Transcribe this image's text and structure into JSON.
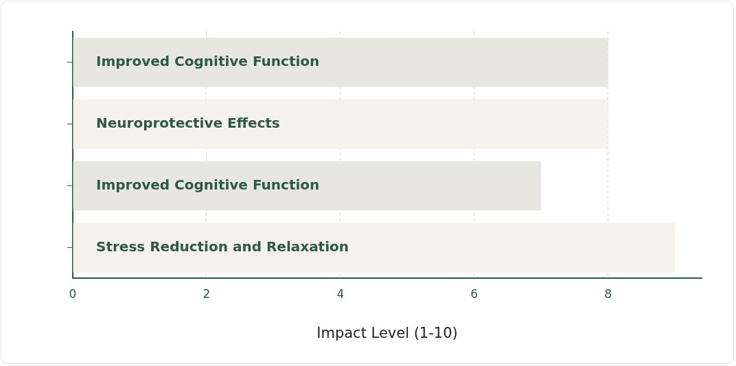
{
  "chart_data": {
    "type": "bar",
    "orientation": "horizontal",
    "xlabel": "Impact Level (1-10)",
    "categories": [
      "Improved Cognitive Function",
      "Neuroprotective Effects",
      "Improved Cognitive Function",
      "Stress Reduction and Relaxation"
    ],
    "values": [
      8,
      8,
      7,
      9
    ],
    "colors": [
      "#e8e7df",
      "#f6f1eb",
      "#e8e7df",
      "#f6f1eb"
    ],
    "xlim": [
      0,
      9.4
    ],
    "xticks": [
      0,
      2,
      4,
      6,
      8
    ],
    "grid": "x",
    "legend": false
  }
}
